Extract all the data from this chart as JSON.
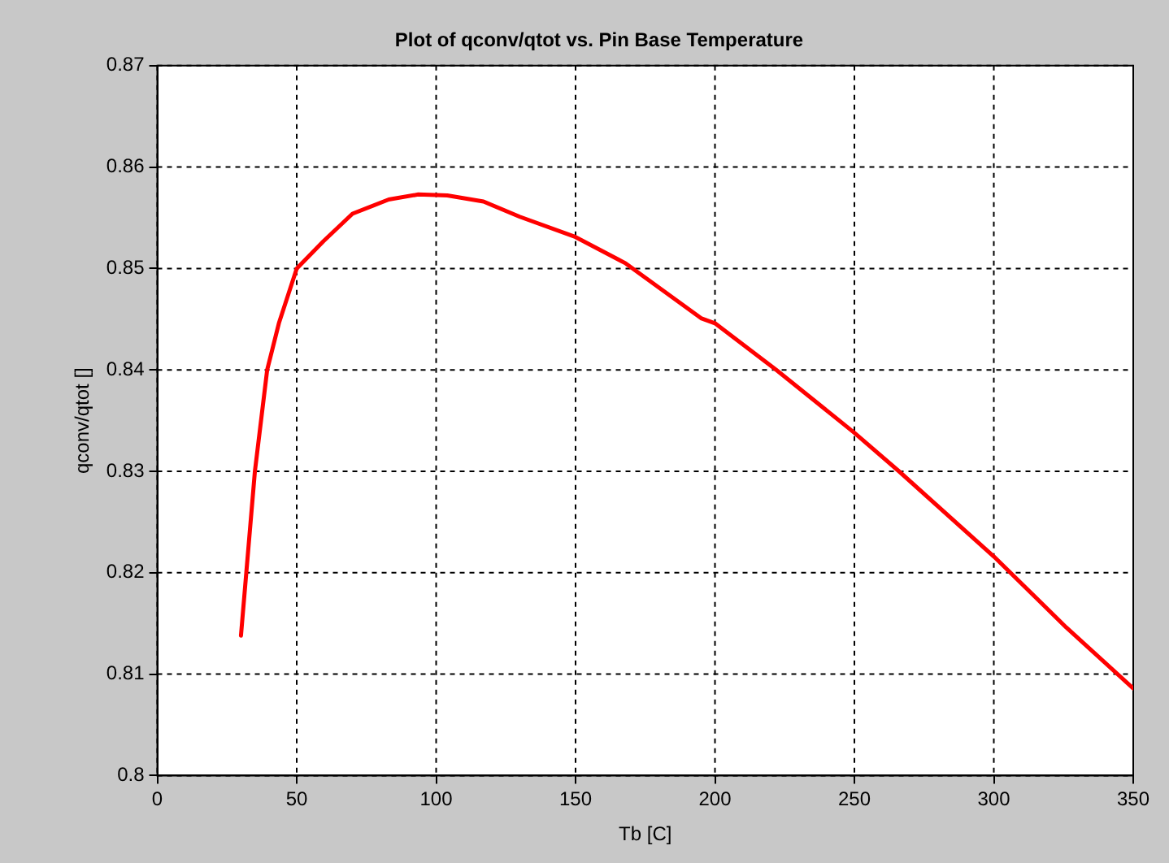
{
  "chart_data": {
    "type": "line",
    "title": "Plot of qconv/qtot vs. Pin Base Temperature",
    "xlabel": "Tb [C]",
    "ylabel": "qconv/qtot []",
    "series": [
      {
        "color": "#ff0000",
        "x": [
          30,
          35,
          39.4,
          43.6,
          50,
          59.6,
          70,
          83,
          93.6,
          104,
          117,
          130,
          150,
          168,
          195,
          200,
          222,
          250,
          266,
          300,
          326,
          350
        ],
        "values": [
          0.8138,
          0.83,
          0.84,
          0.8446,
          0.85,
          0.8527,
          0.8554,
          0.8568,
          0.8573,
          0.8572,
          0.8566,
          0.8551,
          0.8531,
          0.8505,
          0.8451,
          0.8446,
          0.84,
          0.8338,
          0.83,
          0.8216,
          0.8146,
          0.8086
        ]
      }
    ],
    "xlim": [
      0,
      350
    ],
    "xticks": [
      0,
      50,
      100,
      150,
      200,
      250,
      300,
      350
    ],
    "ylim": [
      0.8,
      0.87
    ],
    "yticks": [
      0.8,
      0.81,
      0.82,
      0.83,
      0.84,
      0.85,
      0.86,
      0.87
    ],
    "grid": true,
    "line_style": "solid",
    "marker": "none",
    "legend": false
  }
}
